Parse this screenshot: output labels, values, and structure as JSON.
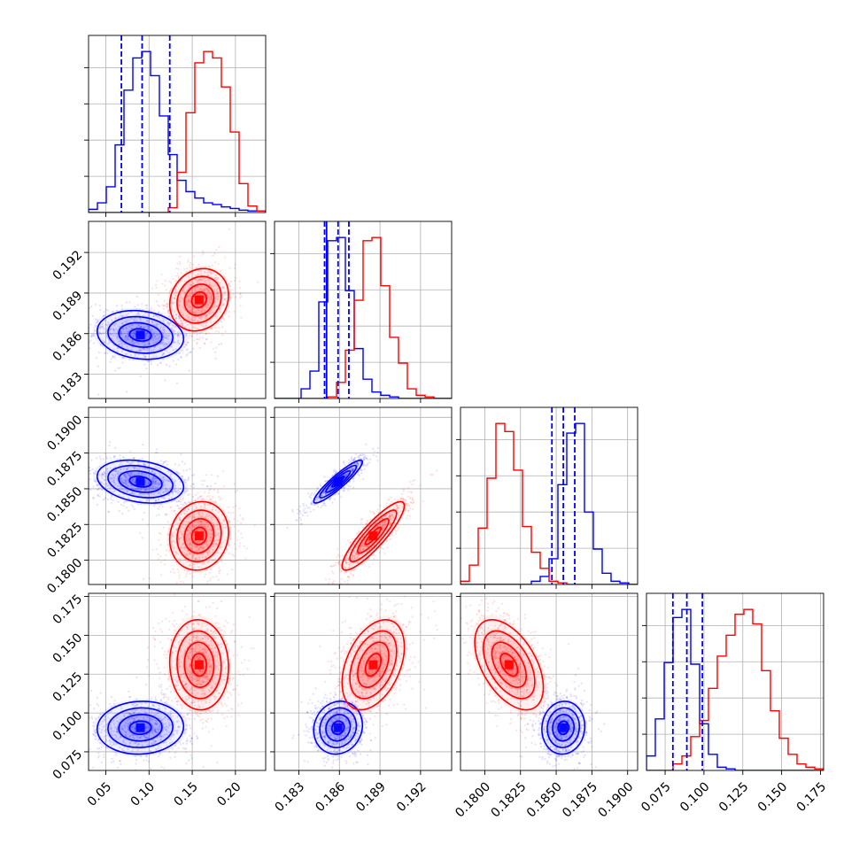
{
  "chart_data": {
    "type": "corner",
    "colors": {
      "blue": "#0000ff",
      "red": "#ff0000",
      "grid": "#b0b0b0"
    },
    "parameters": [
      {
        "range": [
          0.03,
          0.235
        ],
        "ticks": [
          0.05,
          0.1,
          0.15,
          0.2
        ],
        "tick_labels": [
          "0.05",
          "0.10",
          "0.15",
          "0.20"
        ]
      },
      {
        "range": [
          0.1812,
          0.1943
        ],
        "ticks": [
          0.183,
          0.186,
          0.189,
          0.192
        ],
        "tick_labels": [
          "0.183",
          "0.186",
          "0.189",
          "0.192"
        ]
      },
      {
        "range": [
          0.1783,
          0.1907
        ],
        "ticks": [
          0.18,
          0.1825,
          0.185,
          0.1875,
          0.19
        ],
        "tick_labels": [
          "0.1800",
          "0.1825",
          "0.1850",
          "0.1875",
          "0.1900"
        ]
      },
      {
        "range": [
          0.063,
          0.177
        ],
        "ticks": [
          0.075,
          0.1,
          0.125,
          0.15,
          0.175
        ],
        "tick_labels": [
          "0.075",
          "0.100",
          "0.125",
          "0.150",
          "0.175"
        ]
      }
    ],
    "series": [
      {
        "color": "blue",
        "means": [
          0.09,
          0.1859,
          0.1855,
          0.0905
        ],
        "sigmas": [
          0.025,
          0.0009,
          0.00075,
          0.0085
        ],
        "quantile_lines": [
          [
            0.068,
            0.092,
            0.124
          ],
          [
            0.1849,
            0.1859,
            0.1867
          ],
          [
            0.1847,
            0.1855,
            0.1863
          ],
          [
            0.08,
            0.089,
            0.099
          ]
        ],
        "correlations": {
          "1-0": -0.15,
          "2-0": -0.25,
          "2-1": 0.92,
          "3-0": 0.05,
          "3-1": 0.1,
          "3-2": 0.05
        }
      },
      {
        "color": "red",
        "means": [
          0.158,
          0.1885,
          0.1817,
          0.131
        ],
        "sigmas": [
          0.017,
          0.00115,
          0.0012,
          0.0145
        ],
        "quantile_lines": [],
        "correlations": {
          "1-0": 0.15,
          "2-0": 0.1,
          "2-1": 0.88,
          "3-0": -0.05,
          "3-1": 0.4,
          "3-2": -0.5
        }
      }
    ],
    "histograms": [
      {
        "ylim": [
          0,
          1.1
        ],
        "blue": [
          0.02,
          0.06,
          0.16,
          0.42,
          0.76,
          0.96,
          1.0,
          0.85,
          0.6,
          0.36,
          0.2,
          0.13,
          0.09,
          0.06,
          0.05,
          0.035,
          0.025,
          0.015,
          0.01,
          0.01
        ],
        "red": [
          0,
          0,
          0,
          0,
          0,
          0,
          0,
          0,
          0,
          0.03,
          0.25,
          0.62,
          0.93,
          1.0,
          0.96,
          0.78,
          0.5,
          0.18,
          0.04,
          0.01
        ]
      },
      {
        "ylim": [
          0,
          1.1
        ],
        "blue": [
          0,
          0,
          0,
          0.06,
          0.17,
          0.6,
          0.98,
          1.0,
          0.67,
          0.31,
          0.12,
          0.04,
          0.02,
          0.01,
          0,
          0,
          0,
          0,
          0,
          0
        ],
        "red": [
          0,
          0,
          0,
          0,
          0,
          0,
          0.01,
          0.1,
          0.3,
          0.61,
          0.98,
          1.0,
          0.7,
          0.38,
          0.22,
          0.06,
          0.02,
          0.01,
          0,
          0
        ],
        "extra_quantiles": [
          0.18505
        ]
      },
      {
        "ylim": [
          0,
          1.1
        ],
        "blue": [
          0,
          0,
          0,
          0,
          0,
          0,
          0,
          0,
          0.02,
          0.05,
          0.16,
          0.62,
          0.94,
          1.0,
          0.45,
          0.22,
          0.07,
          0.02,
          0.01,
          0
        ],
        "red": [
          0.02,
          0.12,
          0.35,
          0.66,
          1.0,
          0.95,
          0.71,
          0.36,
          0.2,
          0.1,
          0.02,
          0.01,
          0,
          0,
          0,
          0,
          0,
          0,
          0,
          0
        ]
      },
      {
        "ylim": [
          0,
          1.1
        ],
        "blue": [
          0.09,
          0.32,
          0.67,
          0.95,
          1.0,
          0.66,
          0.29,
          0.1,
          0.02,
          0.01,
          0,
          0,
          0,
          0,
          0,
          0,
          0,
          0,
          0,
          0
        ],
        "red": [
          0,
          0,
          0,
          0.04,
          0.09,
          0.21,
          0.31,
          0.51,
          0.71,
          0.84,
          0.97,
          1.0,
          0.91,
          0.62,
          0.37,
          0.2,
          0.1,
          0.04,
          0.02,
          0.01
        ]
      }
    ]
  }
}
